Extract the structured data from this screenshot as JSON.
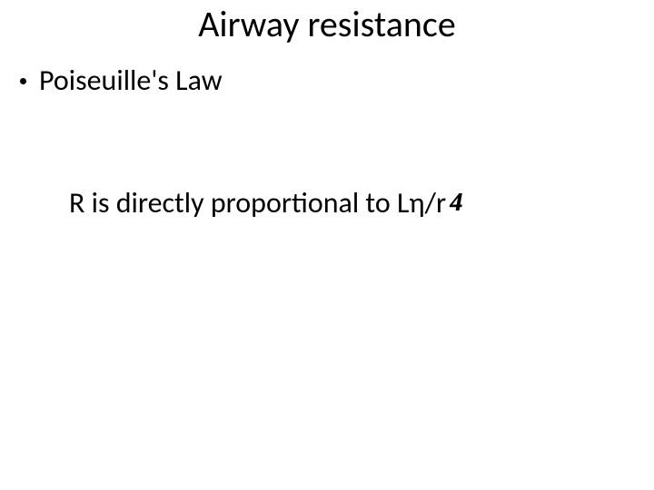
{
  "slide": {
    "title": "Airway resistance",
    "bullet": {
      "text": "Poiseuille's Law"
    },
    "formula": {
      "text": "R is directly proportional to Lη/r",
      "exponent": "4"
    }
  },
  "styling": {
    "background_color": "#ffffff",
    "text_color": "#000000",
    "title_fontsize": 40,
    "body_fontsize": 32,
    "font_family": "Calibri"
  }
}
